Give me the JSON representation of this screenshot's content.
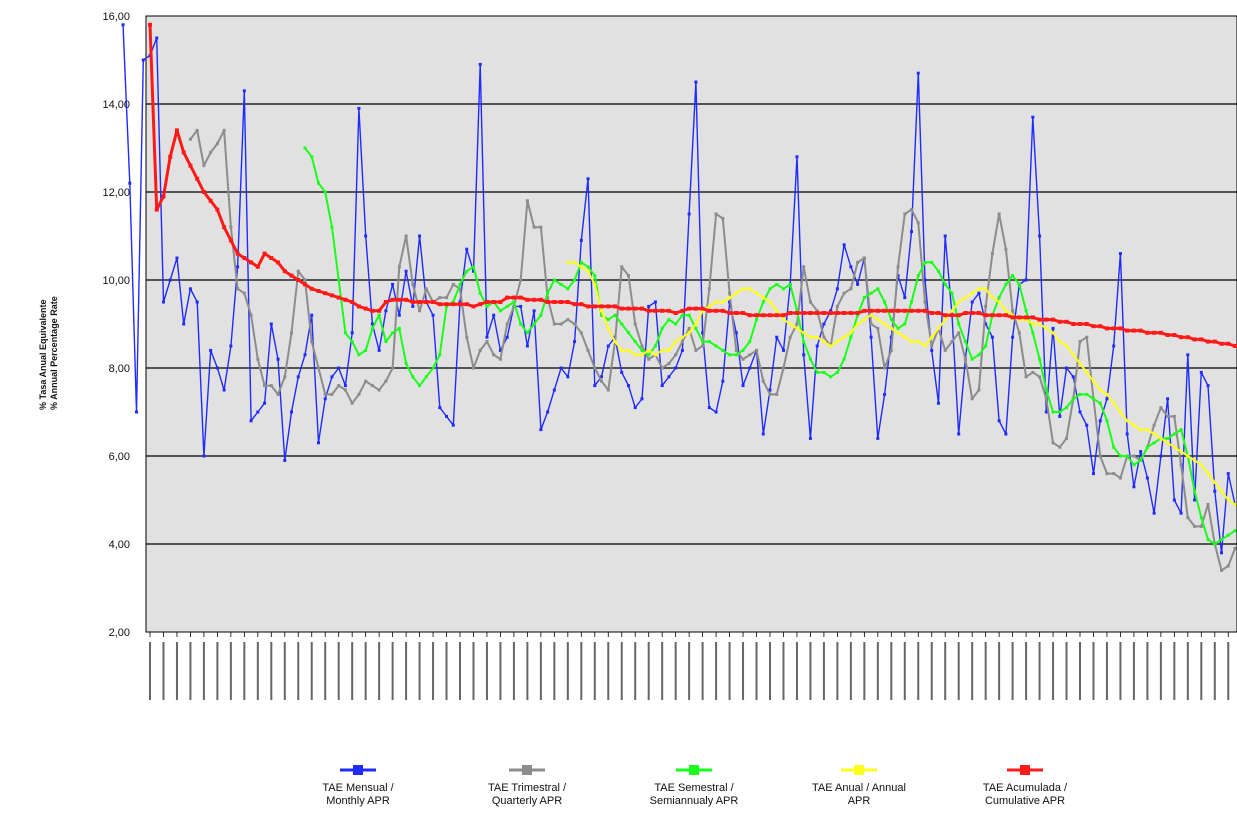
{
  "chart_data": {
    "type": "line",
    "ylabel": [
      "% Tasa Anual Equivalente",
      "% Annual Percentage Rate"
    ],
    "ylim": [
      2,
      16
    ],
    "yticks": [
      "2,00",
      "4,00",
      "6,00",
      "8,00",
      "10,00",
      "12,00",
      "14,00",
      "16,00"
    ],
    "grid": true,
    "legend_position": "bottom",
    "n_points": 162,
    "series": [
      {
        "name": "TAE Mensual / Monthly APR",
        "color": "#1f2bff",
        "values": [
          15.8,
          12.2,
          7.0,
          15.0,
          15.1,
          15.5,
          9.5,
          10.0,
          10.5,
          9.0,
          9.8,
          9.5,
          6.0,
          8.4,
          8.0,
          7.5,
          8.5,
          10.3,
          14.3,
          6.8,
          7.0,
          7.2,
          9.0,
          8.2,
          5.9,
          7.0,
          7.8,
          8.3,
          9.2,
          6.3,
          7.3,
          7.8,
          8.0,
          7.6,
          8.8,
          13.9,
          11.0,
          9.0,
          8.4,
          9.3,
          9.9,
          9.2,
          10.2,
          9.4,
          11.0,
          9.5,
          9.2,
          7.1,
          6.9,
          6.7,
          9.5,
          10.7,
          10.2,
          14.9,
          8.7,
          9.2,
          8.4,
          8.7,
          9.4,
          9.4,
          8.5,
          9.3,
          6.6,
          7.0,
          7.5,
          8.0,
          7.8,
          8.6,
          10.9,
          12.3,
          7.6,
          7.8,
          8.5,
          8.7,
          7.9,
          7.6,
          7.1,
          7.3,
          9.4,
          9.5,
          7.6,
          7.8,
          8.0,
          8.4,
          11.5,
          14.5,
          8.8,
          7.1,
          7.0,
          7.7,
          9.5,
          8.8,
          7.6,
          8.0,
          8.4,
          6.5,
          7.5,
          8.7,
          8.4,
          9.9,
          12.8,
          8.3,
          6.4,
          8.5,
          9.0,
          9.3,
          9.8,
          10.8,
          10.3,
          9.9,
          10.5,
          8.7,
          6.4,
          7.4,
          8.7,
          10.1,
          9.6,
          11.1,
          14.7,
          10.0,
          8.4,
          7.2,
          11.0,
          9.2,
          6.5,
          8.2,
          9.5,
          9.7,
          9.0,
          8.7,
          6.8,
          6.5,
          8.7,
          9.9,
          10.0,
          13.7,
          11.0,
          7.0,
          8.9,
          6.9,
          8.0,
          7.8,
          7.0,
          6.7,
          5.6,
          6.8,
          7.3,
          8.5,
          10.6,
          6.5,
          5.3,
          6.1,
          5.5,
          4.7,
          6.0,
          7.3,
          5.0,
          4.7,
          8.3,
          5.0,
          7.9,
          7.6,
          5.2,
          3.8,
          5.6,
          4.9
        ]
      },
      {
        "name": "TAE Trimestral / Quarterly APR",
        "color": "#8c8c8c",
        "values": [
          13.2,
          13.4,
          12.6,
          12.9,
          13.1,
          13.4,
          11.2,
          9.8,
          9.7,
          9.2,
          8.2,
          7.6,
          7.6,
          7.4,
          7.8,
          8.8,
          10.2,
          10.0,
          8.6,
          8.0,
          7.4,
          7.4,
          7.6,
          7.5,
          7.2,
          7.4,
          7.7,
          7.6,
          7.5,
          7.7,
          8.0,
          10.3,
          11.0,
          9.9,
          9.3,
          9.8,
          9.5,
          9.6,
          9.6,
          9.9,
          9.8,
          8.7,
          8.0,
          8.4,
          8.6,
          8.3,
          8.2,
          9.0,
          9.4,
          10.0,
          11.8,
          11.2,
          11.2,
          9.6,
          9.0,
          9.0,
          9.1,
          9.0,
          8.8,
          8.4,
          8.0,
          7.7,
          7.5,
          8.6,
          10.3,
          10.1,
          9.0,
          8.5,
          8.2,
          8.3,
          8.0,
          8.1,
          8.3,
          8.6,
          8.9,
          8.4,
          8.5,
          9.8,
          11.5,
          11.4,
          9.7,
          8.4,
          8.2,
          8.3,
          8.4,
          7.7,
          7.4,
          7.4,
          8.0,
          8.7,
          9.0,
          10.3,
          9.5,
          9.3,
          8.7,
          8.5,
          9.4,
          9.7,
          9.8,
          10.4,
          10.5,
          9.0,
          8.9,
          8.0,
          8.4,
          10.3,
          11.5,
          11.6,
          11.3,
          9.5,
          8.5,
          8.9,
          8.4,
          8.6,
          8.8,
          8.2,
          7.3,
          7.5,
          9.4,
          10.6,
          11.5,
          10.7,
          9.3,
          8.8,
          7.8,
          7.9,
          7.8,
          7.3,
          6.3,
          6.2,
          6.4,
          7.3,
          8.6,
          8.7,
          7.3,
          6.0,
          5.6,
          5.6,
          5.5,
          6.0,
          6.0,
          5.9,
          6.2,
          6.7,
          7.1,
          6.9,
          6.9,
          5.8,
          4.6,
          4.4,
          4.4,
          4.9,
          4.0,
          3.4,
          3.5,
          3.9
        ]
      },
      {
        "name": "TAE Semestral / Semiannualy APR",
        "color": "#19ff19",
        "values": [
          13.0,
          12.8,
          12.2,
          12.0,
          11.2,
          10.0,
          8.8,
          8.6,
          8.3,
          8.4,
          8.9,
          9.2,
          8.6,
          8.8,
          8.9,
          8.1,
          7.8,
          7.6,
          7.8,
          8.0,
          8.3,
          9.4,
          9.5,
          9.9,
          10.2,
          10.3,
          9.7,
          9.4,
          9.5,
          9.3,
          9.4,
          9.5,
          9.0,
          8.8,
          9.0,
          9.2,
          9.7,
          10.0,
          9.9,
          9.8,
          10.0,
          10.4,
          10.3,
          10.1,
          9.2,
          9.1,
          9.2,
          9.0,
          8.8,
          8.6,
          8.4,
          8.3,
          8.5,
          8.9,
          9.1,
          9.0,
          9.2,
          9.2,
          8.9,
          8.6,
          8.6,
          8.5,
          8.4,
          8.3,
          8.3,
          8.4,
          8.6,
          9.1,
          9.5,
          9.8,
          9.9,
          9.8,
          9.9,
          9.3,
          8.6,
          8.2,
          7.9,
          7.9,
          7.8,
          7.9,
          8.2,
          8.7,
          9.2,
          9.6,
          9.7,
          9.8,
          9.5,
          9.1,
          8.9,
          9.0,
          9.5,
          10.1,
          10.4,
          10.4,
          10.2,
          9.9,
          9.7,
          9.0,
          8.6,
          8.2,
          8.3,
          8.5,
          9.2,
          9.6,
          9.9,
          10.1,
          9.9,
          9.3,
          8.8,
          8.2,
          7.5,
          7.0,
          7.0,
          7.1,
          7.3,
          7.4,
          7.4,
          7.3,
          7.2,
          6.8,
          6.2,
          6.0,
          6.0,
          5.8,
          5.9,
          6.2,
          6.3,
          6.4,
          6.4,
          6.5,
          6.6,
          6.0,
          5.2,
          4.6,
          4.1,
          4.0,
          4.1,
          4.2,
          4.3
        ]
      },
      {
        "name": "TAE Anual / Annual APR",
        "color": "#ffff1e",
        "values": [
          10.4,
          10.4,
          10.3,
          10.2,
          9.9,
          9.3,
          8.9,
          8.6,
          8.4,
          8.4,
          8.3,
          8.3,
          8.4,
          8.3,
          8.4,
          8.4,
          8.6,
          8.7,
          8.8,
          9.0,
          9.3,
          9.4,
          9.5,
          9.5,
          9.6,
          9.7,
          9.8,
          9.8,
          9.7,
          9.6,
          9.5,
          9.3,
          9.1,
          9.0,
          8.9,
          8.8,
          8.7,
          8.7,
          8.6,
          8.5,
          8.6,
          8.7,
          8.8,
          9.0,
          9.1,
          9.2,
          9.1,
          9.0,
          8.9,
          8.8,
          8.7,
          8.6,
          8.6,
          8.5,
          8.7,
          8.9,
          9.1,
          9.3,
          9.5,
          9.6,
          9.7,
          9.8,
          9.8,
          9.6,
          9.5,
          9.3,
          9.2,
          9.1,
          9.1,
          9.0,
          9.0,
          8.9,
          8.8,
          8.6,
          8.5,
          8.3,
          8.1,
          7.9,
          7.7,
          7.5,
          7.4,
          7.2,
          7.0,
          6.8,
          6.7,
          6.6,
          6.6,
          6.5,
          6.4,
          6.3,
          6.2,
          6.1,
          6.0,
          5.9,
          5.8,
          5.6,
          5.4,
          5.2,
          5.0,
          4.9
        ]
      },
      {
        "name": "TAE Acumulada / Cumulative APR",
        "color": "#ff1a1a",
        "values": [
          15.8,
          11.6,
          11.9,
          12.8,
          13.4,
          12.9,
          12.6,
          12.3,
          12.0,
          11.8,
          11.6,
          11.2,
          10.9,
          10.6,
          10.5,
          10.4,
          10.3,
          10.6,
          10.5,
          10.4,
          10.2,
          10.1,
          10.0,
          9.9,
          9.8,
          9.75,
          9.7,
          9.65,
          9.6,
          9.55,
          9.5,
          9.4,
          9.35,
          9.3,
          9.3,
          9.5,
          9.55,
          9.55,
          9.55,
          9.5,
          9.5,
          9.5,
          9.5,
          9.45,
          9.45,
          9.45,
          9.45,
          9.45,
          9.4,
          9.45,
          9.5,
          9.5,
          9.5,
          9.6,
          9.6,
          9.6,
          9.55,
          9.55,
          9.55,
          9.5,
          9.5,
          9.5,
          9.5,
          9.45,
          9.45,
          9.4,
          9.4,
          9.4,
          9.4,
          9.4,
          9.35,
          9.35,
          9.35,
          9.35,
          9.3,
          9.3,
          9.3,
          9.3,
          9.25,
          9.3,
          9.35,
          9.35,
          9.35,
          9.3,
          9.3,
          9.3,
          9.25,
          9.25,
          9.25,
          9.2,
          9.2,
          9.2,
          9.2,
          9.2,
          9.2,
          9.25,
          9.25,
          9.25,
          9.25,
          9.25,
          9.25,
          9.25,
          9.25,
          9.25,
          9.25,
          9.25,
          9.3,
          9.3,
          9.3,
          9.3,
          9.3,
          9.3,
          9.3,
          9.3,
          9.3,
          9.3,
          9.25,
          9.25,
          9.2,
          9.2,
          9.2,
          9.25,
          9.25,
          9.25,
          9.2,
          9.2,
          9.2,
          9.2,
          9.15,
          9.15,
          9.15,
          9.15,
          9.1,
          9.1,
          9.1,
          9.05,
          9.05,
          9.0,
          9.0,
          9.0,
          8.95,
          8.95,
          8.9,
          8.9,
          8.9,
          8.85,
          8.85,
          8.85,
          8.8,
          8.8,
          8.8,
          8.75,
          8.75,
          8.7,
          8.7,
          8.65,
          8.65,
          8.6,
          8.6,
          8.55,
          8.55,
          8.5
        ]
      }
    ]
  },
  "legend": {
    "items": [
      {
        "line1": "TAE Mensual /",
        "line2": "Monthly APR",
        "color": "#1f2bff"
      },
      {
        "line1": "TAE Trimestral /",
        "line2": "Quarterly APR",
        "color": "#8c8c8c"
      },
      {
        "line1": "TAE Semestral /",
        "line2": "Semiannualy APR",
        "color": "#19ff19"
      },
      {
        "line1": "TAE Anual / Annual",
        "line2": "APR",
        "color": "#ffff1e"
      },
      {
        "line1": "TAE Acumulada /",
        "line2": "Cumulative APR",
        "color": "#ff1a1a"
      }
    ]
  }
}
